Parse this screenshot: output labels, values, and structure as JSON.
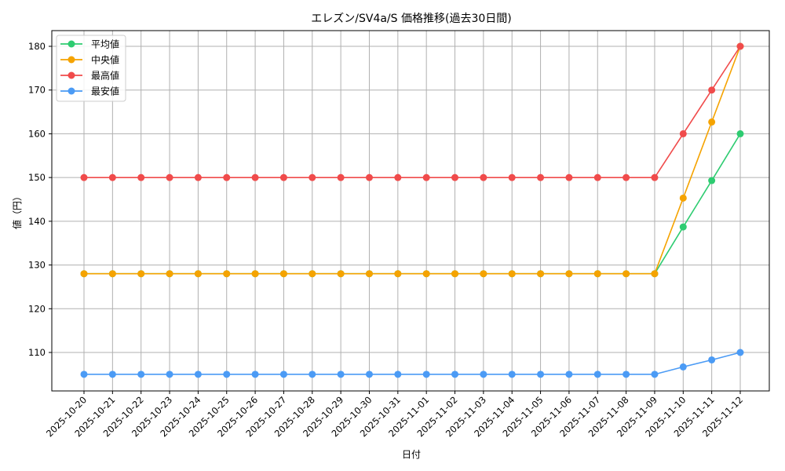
{
  "chart_data": {
    "type": "line",
    "title": "エレズン/SV4a/S 価格推移(過去30日間)",
    "xlabel": "日付",
    "ylabel": "値（円）",
    "ylim": [
      101.5,
      183.5
    ],
    "yticks": [
      110,
      120,
      130,
      140,
      150,
      160,
      170,
      180
    ],
    "grid": true,
    "legend_position": "upper left",
    "categories": [
      "2025-10-20",
      "2025-10-21",
      "2025-10-22",
      "2025-10-23",
      "2025-10-24",
      "2025-10-25",
      "2025-10-26",
      "2025-10-27",
      "2025-10-28",
      "2025-10-29",
      "2025-10-30",
      "2025-10-31",
      "2025-11-01",
      "2025-11-02",
      "2025-11-03",
      "2025-11-04",
      "2025-11-05",
      "2025-11-06",
      "2025-11-07",
      "2025-11-08",
      "2025-11-09",
      "2025-11-10",
      "2025-11-11",
      "2025-11-12"
    ],
    "series": [
      {
        "name": "平均値",
        "color": "#2ecc71",
        "values": [
          128,
          128,
          128,
          128,
          128,
          128,
          128,
          128,
          128,
          128,
          128,
          128,
          128,
          128,
          128,
          128,
          128,
          128,
          128,
          128,
          128,
          138.7,
          149.3,
          160
        ]
      },
      {
        "name": "中央値",
        "color": "#f5a300",
        "values": [
          128,
          128,
          128,
          128,
          128,
          128,
          128,
          128,
          128,
          128,
          128,
          128,
          128,
          128,
          128,
          128,
          128,
          128,
          128,
          128,
          128,
          145.3,
          162.7,
          180
        ]
      },
      {
        "name": "最高値",
        "color": "#f04b4b",
        "values": [
          150,
          150,
          150,
          150,
          150,
          150,
          150,
          150,
          150,
          150,
          150,
          150,
          150,
          150,
          150,
          150,
          150,
          150,
          150,
          150,
          150,
          160,
          170,
          180
        ]
      },
      {
        "name": "最安値",
        "color": "#4b9bf5",
        "values": [
          105,
          105,
          105,
          105,
          105,
          105,
          105,
          105,
          105,
          105,
          105,
          105,
          105,
          105,
          105,
          105,
          105,
          105,
          105,
          105,
          105,
          106.7,
          108.3,
          110
        ]
      }
    ]
  }
}
